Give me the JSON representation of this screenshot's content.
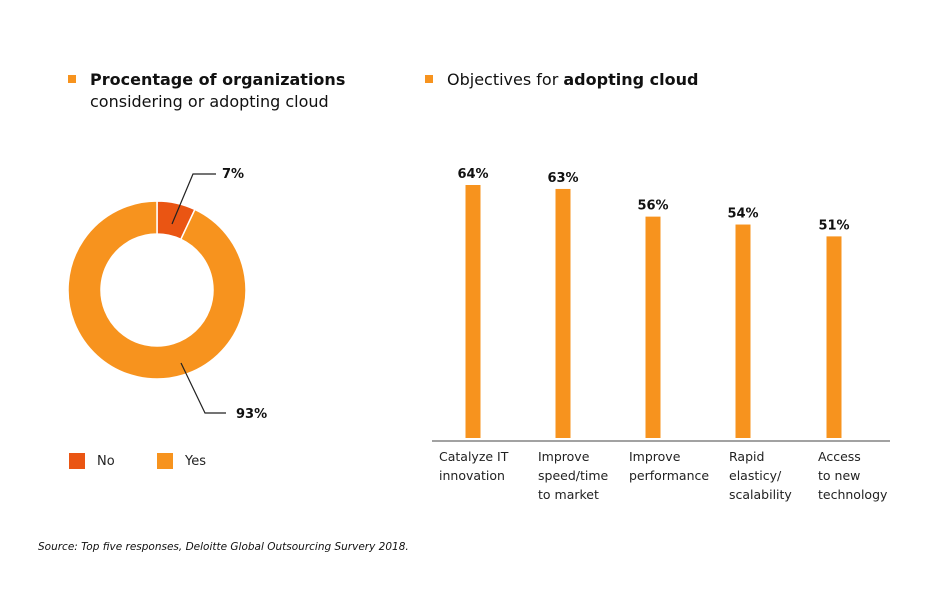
{
  "left_panel": {
    "title_bold": "Procentage of organizations",
    "title_rest": "considering or adopting cloud",
    "legend": [
      {
        "label": "No",
        "color": "#ea5513"
      },
      {
        "label": "Yes",
        "color": "#f7931e"
      }
    ]
  },
  "right_panel": {
    "title_prefix": "Objectives for ",
    "title_bold": "adopting cloud"
  },
  "source": "Source: Top five responses, Deloitte Global Outsourcing Survery 2018.",
  "chart_data": [
    {
      "type": "pie",
      "variant": "donut",
      "title": "Procentage of organizations considering or adopting cloud",
      "categories": [
        "No",
        "Yes"
      ],
      "values": [
        7,
        93
      ],
      "labels": [
        "7%",
        "93%"
      ],
      "colors": [
        "#ea5513",
        "#f7931e"
      ],
      "legend": "bottom-left"
    },
    {
      "type": "bar",
      "title": "Objectives for adopting cloud",
      "categories": [
        "Catalyze IT innovation",
        "Improve speed/time to market",
        "Improve performance",
        "Rapid elasticy/ scalability",
        "Access to new technology"
      ],
      "category_lines": [
        [
          "Catalyze IT",
          "innovation"
        ],
        [
          "Improve",
          "speed/time",
          "to market"
        ],
        [
          "Improve",
          "performance"
        ],
        [
          "Rapid",
          "elasticy/",
          "scalability"
        ],
        [
          "Access",
          "to new",
          "technology"
        ]
      ],
      "values": [
        64,
        63,
        56,
        54,
        51
      ],
      "data_labels": [
        "64%",
        "63%",
        "56%",
        "54%",
        "51%"
      ],
      "color": "#f7931e",
      "xlabel": "",
      "ylabel": "",
      "ylim": [
        0,
        100
      ],
      "grid": false
    }
  ]
}
